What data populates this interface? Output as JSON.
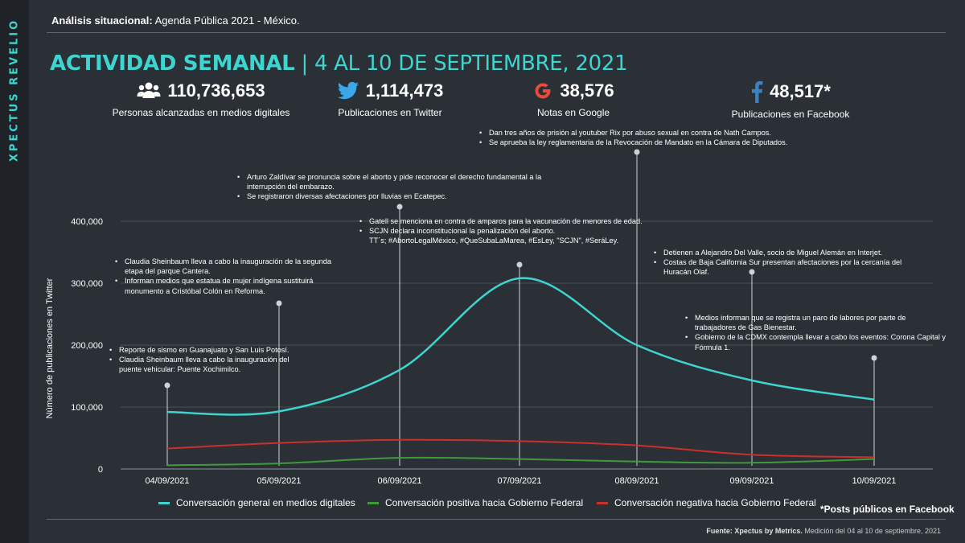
{
  "brand": "XPECTUS REVELIO",
  "header": {
    "bold": "Análisis situacional:",
    "text": "Agenda Pública 2021 - México."
  },
  "title": {
    "bold": "ACTIVIDAD SEMANAL",
    "rest": "| 4 AL 10 DE SEPTIEMBRE, 2021"
  },
  "stats": [
    {
      "icon": "people-icon",
      "value": "110,736,653",
      "label": "Personas alcanzadas en medios digitales"
    },
    {
      "icon": "twitter-icon",
      "value": "1,114,473",
      "label": "Publicaciones en Twitter"
    },
    {
      "icon": "google-icon",
      "value": "38,576",
      "label": "Notas en Google"
    },
    {
      "icon": "facebook-icon",
      "value": "48,517*",
      "label": "Publicaciones en Facebook"
    }
  ],
  "annotations": [
    {
      "date": "04/09/2021",
      "items": [
        "Reporte de sismo en Guanajuato y San Luis Potosí.",
        "Claudia Sheinbaum lleva a cabo la inauguración del puente vehicular: Puente Xochimilco."
      ]
    },
    {
      "date": "05/09/2021",
      "items": [
        "Claudia Sheinbaum lleva a cabo la inauguración de la segunda etapa del parque Cantera.",
        "Informan medios que estatua de mujer indígena sustituirá monumento a Cristóbal Colón en Reforma."
      ]
    },
    {
      "date": "06/09/2021",
      "items": [
        "Arturo Zaldívar se pronuncia sobre el aborto y pide reconocer  el derecho fundamental a la interrupción del embarazo.",
        "Se registraron diversas afectaciones por lluvias en Ecatepec."
      ]
    },
    {
      "date": "07/09/2021",
      "items": [
        "Gatell se menciona en contra de amparos para la vacunación de menores de edad.",
        "SCJN declara inconstitucional la penalización del aborto."
      ],
      "extra": "TT´s; #AbortoLegalMéxico, #QueSubaLaMarea,  #EsLey, \"SCJN\",  #SeráLey."
    },
    {
      "date": "08/09/2021",
      "items": [
        "Dan tres años de prisión al youtuber Rix por abuso sexual en contra de Nath Campos.",
        "Se aprueba  la ley reglamentaria de la Revocación de Mandato en la Cámara de Diputados."
      ]
    },
    {
      "date": "09/09/2021",
      "items": [
        "Detienen a Alejandro Del Valle, socio de Miguel Alemán en Interjet.",
        "Costas de Baja California Sur presentan afectaciones por la cercanía del Huracán Olaf."
      ]
    },
    {
      "date": "10/09/2021",
      "items": [
        "Medios informan que se registra un paro de labores por parte de trabajadores de Gas Bienestar.",
        "Gobierno de la CDMX contempla llevar a cabo los eventos: Corona Capital y Fórmula 1."
      ]
    }
  ],
  "chart_data": {
    "type": "line",
    "x": [
      "04/09/2021",
      "05/09/2021",
      "06/09/2021",
      "07/09/2021",
      "08/09/2021",
      "09/09/2021",
      "10/09/2021"
    ],
    "ylabel": "Número de publicaciones en Twitter",
    "ylim": [
      0,
      400000
    ],
    "yticks": [
      0,
      100000,
      200000,
      300000,
      400000
    ],
    "ytick_labels": [
      "0",
      "100,000",
      "200,000",
      "300,000",
      "400,000"
    ],
    "grid": true,
    "legend_position": "bottom",
    "series": [
      {
        "name": "Conversación general en medios digitales",
        "color": "#3fd4d0",
        "values": [
          92000,
          93000,
          160000,
          308000,
          200000,
          143000,
          112000
        ]
      },
      {
        "name": "Conversación positiva hacia Gobierno Federal",
        "color": "#3f9a3b",
        "values": [
          6000,
          9000,
          18000,
          16000,
          12000,
          10000,
          16000
        ]
      },
      {
        "name": "Conversación negativa hacia Gobierno Federal",
        "color": "#c8302e",
        "values": [
          33000,
          42000,
          47000,
          45000,
          38000,
          23000,
          19000
        ]
      }
    ]
  },
  "fb_note": "*Posts públicos en Facebook",
  "footer": {
    "bold": "Fuente: Xpectus by Metrics.",
    "text": "Medición del 04 al 10 de septiembre, 2021"
  }
}
